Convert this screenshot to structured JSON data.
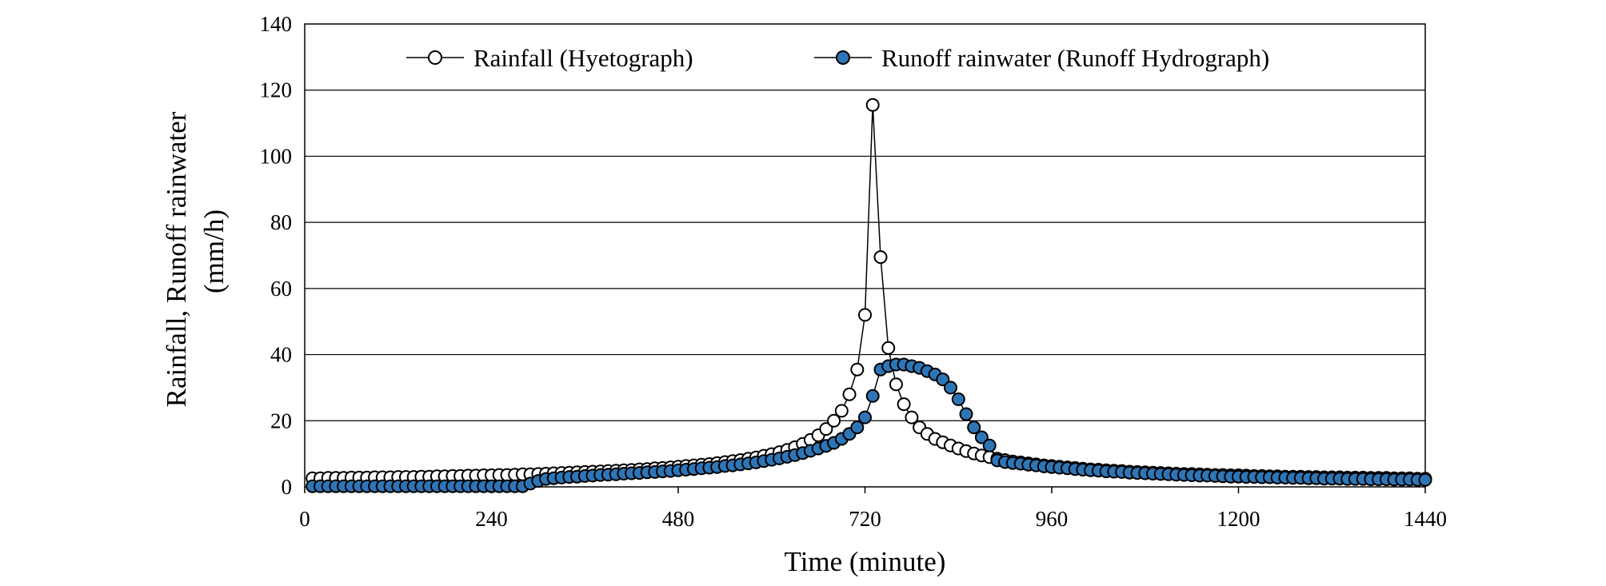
{
  "chart_data": {
    "type": "line",
    "title": "",
    "xlabel": "Time (minute)",
    "ylabel_line1": "Rainfall, Runoff rainwater",
    "ylabel_line2": "(mm/h)",
    "xlim": [
      0,
      1440
    ],
    "ylim": [
      0,
      140
    ],
    "xticks": [
      0,
      240,
      480,
      720,
      960,
      1200,
      1440
    ],
    "yticks": [
      0,
      20,
      40,
      60,
      80,
      100,
      120,
      140
    ],
    "grid": "horizontal",
    "legend_position": "top",
    "x": [
      10,
      20,
      30,
      40,
      50,
      60,
      70,
      80,
      90,
      100,
      110,
      120,
      130,
      140,
      150,
      160,
      170,
      180,
      190,
      200,
      210,
      220,
      230,
      240,
      250,
      260,
      270,
      280,
      290,
      300,
      310,
      320,
      330,
      340,
      350,
      360,
      370,
      380,
      390,
      400,
      410,
      420,
      430,
      440,
      450,
      460,
      470,
      480,
      490,
      500,
      510,
      520,
      530,
      540,
      550,
      560,
      570,
      580,
      590,
      600,
      610,
      620,
      630,
      640,
      650,
      660,
      670,
      680,
      690,
      700,
      710,
      720,
      730,
      740,
      750,
      760,
      770,
      780,
      790,
      800,
      810,
      820,
      830,
      840,
      850,
      860,
      870,
      880,
      890,
      900,
      910,
      920,
      930,
      940,
      950,
      960,
      970,
      980,
      990,
      1000,
      1010,
      1020,
      1030,
      1040,
      1050,
      1060,
      1070,
      1080,
      1090,
      1100,
      1110,
      1120,
      1130,
      1140,
      1150,
      1160,
      1170,
      1180,
      1190,
      1200,
      1210,
      1220,
      1230,
      1240,
      1250,
      1260,
      1270,
      1280,
      1290,
      1300,
      1310,
      1320,
      1330,
      1340,
      1350,
      1360,
      1370,
      1380,
      1390,
      1400,
      1410,
      1420,
      1430,
      1440
    ],
    "series": [
      {
        "name": "Rainfall (Hyetograph)",
        "marker_fill": "#ffffff",
        "marker_stroke": "#000000",
        "values": [
          2.6,
          2.6,
          2.7,
          2.7,
          2.7,
          2.8,
          2.8,
          2.8,
          2.9,
          2.9,
          2.9,
          3.0,
          3.0,
          3.0,
          3.1,
          3.1,
          3.2,
          3.2,
          3.3,
          3.3,
          3.4,
          3.4,
          3.5,
          3.5,
          3.6,
          3.6,
          3.7,
          3.8,
          3.8,
          3.9,
          4.0,
          4.1,
          4.2,
          4.3,
          4.4,
          4.5,
          4.6,
          4.7,
          4.8,
          4.9,
          5.0,
          5.1,
          5.3,
          5.4,
          5.6,
          5.7,
          5.9,
          6.1,
          6.3,
          6.5,
          6.7,
          6.9,
          7.2,
          7.5,
          7.8,
          8.1,
          8.5,
          8.9,
          9.4,
          9.9,
          10.5,
          11.2,
          12.0,
          13.0,
          14.2,
          15.6,
          17.5,
          20.0,
          23.0,
          28.0,
          35.5,
          52.0,
          115.5,
          69.5,
          42.0,
          31.0,
          25.0,
          21.0,
          18.0,
          16.0,
          14.5,
          13.5,
          12.5,
          11.6,
          10.8,
          10.1,
          9.5,
          9.0,
          8.5,
          8.1,
          7.7,
          7.4,
          7.1,
          6.8,
          6.5,
          6.3,
          6.1,
          5.9,
          5.7,
          5.5,
          5.3,
          5.2,
          5.0,
          4.9,
          4.8,
          4.6,
          4.5,
          4.4,
          4.3,
          4.2,
          4.1,
          4.0,
          3.9,
          3.9,
          3.8,
          3.7,
          3.6,
          3.6,
          3.5,
          3.5,
          3.4,
          3.3,
          3.3,
          3.2,
          3.2,
          3.1,
          3.1,
          3.1,
          3.0,
          3.0,
          2.9,
          2.9,
          2.9,
          2.8,
          2.8,
          2.8,
          2.7,
          2.7,
          2.7,
          2.6,
          2.6,
          2.6,
          2.5,
          2.5
        ]
      },
      {
        "name": "Runoff rainwater (Runoff Hydrograph)",
        "marker_fill": "#2e75b6",
        "marker_stroke": "#000000",
        "values": [
          0.2,
          0.2,
          0.2,
          0.2,
          0.2,
          0.2,
          0.2,
          0.2,
          0.2,
          0.2,
          0.2,
          0.2,
          0.2,
          0.2,
          0.2,
          0.2,
          0.2,
          0.2,
          0.2,
          0.2,
          0.2,
          0.2,
          0.2,
          0.2,
          0.2,
          0.2,
          0.2,
          0.2,
          1.0,
          1.8,
          2.4,
          2.6,
          2.8,
          3.0,
          3.1,
          3.3,
          3.4,
          3.6,
          3.7,
          3.8,
          4.0,
          4.1,
          4.2,
          4.4,
          4.5,
          4.7,
          4.8,
          5.0,
          5.2,
          5.4,
          5.6,
          5.8,
          6.0,
          6.3,
          6.5,
          6.8,
          7.1,
          7.4,
          7.8,
          8.2,
          8.6,
          9.1,
          9.6,
          10.2,
          10.9,
          11.6,
          12.4,
          13.3,
          14.5,
          16.0,
          18.0,
          21.0,
          27.5,
          35.5,
          36.5,
          37.0,
          37.0,
          36.5,
          36.0,
          35.0,
          34.0,
          32.5,
          30.0,
          26.5,
          22.0,
          18.0,
          15.0,
          12.5,
          8.0,
          7.5,
          7.2,
          7.0,
          6.7,
          6.5,
          6.2,
          6.0,
          5.8,
          5.6,
          5.4,
          5.2,
          5.0,
          4.9,
          4.7,
          4.6,
          4.5,
          4.3,
          4.2,
          4.1,
          4.0,
          3.9,
          3.8,
          3.7,
          3.6,
          3.5,
          3.4,
          3.4,
          3.3,
          3.2,
          3.1,
          3.1,
          3.0,
          3.0,
          2.9,
          2.9,
          2.8,
          2.8,
          2.7,
          2.7,
          2.6,
          2.6,
          2.5,
          2.5,
          2.5,
          2.4,
          2.4,
          2.4,
          2.3,
          2.3,
          2.3,
          2.2,
          2.2,
          2.2,
          2.1,
          2.1
        ]
      }
    ]
  }
}
